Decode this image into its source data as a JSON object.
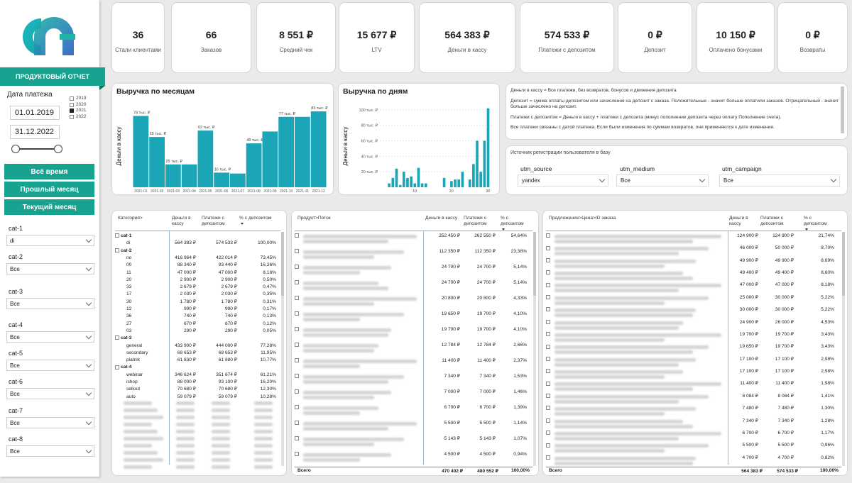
{
  "colors": {
    "accent": "#17a38f",
    "bar": "#1aa6b7",
    "accent_dark": "#0d6e60"
  },
  "sidebar": {
    "logo_icon": "company-logo",
    "title": "ПРОДУКТОВЫЙ ОТЧЕТ",
    "date_label": "Дата платежа",
    "date_from": "01.01.2019",
    "date_to": "31.12.2022",
    "years": [
      {
        "label": "2019",
        "checked": false
      },
      {
        "label": "2020",
        "checked": false
      },
      {
        "label": "2021",
        "checked": true
      },
      {
        "label": "2022",
        "checked": false
      }
    ],
    "buttons": [
      "Всё время",
      "Прошлый месяц",
      "Текущий месяц"
    ],
    "filters": [
      {
        "label": "cat-1",
        "value": "di"
      },
      {
        "label": "cat-2",
        "value": "Все"
      },
      {
        "label": "cat-3",
        "value": "Все"
      },
      {
        "label": "cat-4",
        "value": "Все"
      },
      {
        "label": "cat-5",
        "value": "Все"
      },
      {
        "label": "cat-6",
        "value": "Все"
      },
      {
        "label": "cat-7",
        "value": "Все"
      },
      {
        "label": "cat-8",
        "value": "Все"
      }
    ]
  },
  "kpis": [
    {
      "value": "36",
      "label": "Стали клиентами"
    },
    {
      "value": "66",
      "label": "Заказов"
    },
    {
      "value": "8 551 ₽",
      "label": "Средний чек"
    },
    {
      "value": "15 677 ₽",
      "label": "LTV"
    },
    {
      "value": "564 383 ₽",
      "label": "Деньги в кассу"
    },
    {
      "value": "574 533 ₽",
      "label": "Платежи с депозитом"
    },
    {
      "value": "0 ₽",
      "label": "Депозит"
    },
    {
      "value": "10 150 ₽",
      "label": "Оплачено бонусами"
    },
    {
      "value": "0 ₽",
      "label": "Возвраты"
    }
  ],
  "chart_data": [
    {
      "type": "bar",
      "title": "Выручка по месяцам",
      "ylabel": "Деньги в кассу",
      "xlabel": "",
      "categories": [
        "2021-01",
        "2021-02",
        "2021-03",
        "2021-04",
        "2021-05",
        "2021-06",
        "2021-07",
        "2021-08",
        "2021-09",
        "2021-10",
        "2021-11",
        "2021-12"
      ],
      "values": [
        78,
        55,
        25,
        25,
        62,
        16,
        15,
        48,
        61,
        77,
        77,
        83
      ],
      "data_labels": [
        "78 тыс. ₽",
        "55 тыс. ₽",
        "25 тыс. ₽",
        "",
        "62 тыс. ₽",
        "16 тыс. ₽",
        "",
        "48 тыс. ₽",
        "",
        "77 тыс. ₽",
        "",
        "83 тыс. ₽"
      ],
      "ylim": [
        0,
        90
      ],
      "grid": false
    },
    {
      "type": "bar",
      "title": "Выручка по дням",
      "ylabel": "Деньги в кассу",
      "xlabel": "",
      "x_ticks": [
        10,
        20,
        30
      ],
      "y_ticks": [
        "100 тыс. ₽",
        "80 тыс. ₽",
        "60 тыс. ₽",
        "40 тыс. ₽",
        "20 тыс. ₽"
      ],
      "y_tick_values": [
        100,
        80,
        60,
        40,
        20
      ],
      "ylim": [
        0,
        110
      ],
      "x": [
        3,
        4,
        5,
        6,
        7,
        8,
        9,
        10,
        11,
        12,
        13,
        18,
        20,
        21,
        22,
        23,
        25,
        26,
        27,
        28,
        29,
        30
      ],
      "values": [
        5,
        12,
        24,
        3,
        20,
        12,
        14,
        5,
        25,
        5,
        5,
        12,
        8,
        10,
        10,
        20,
        10,
        30,
        60,
        20,
        60,
        102
      ],
      "grid": true
    }
  ],
  "info": {
    "lines": [
      "Деньги в кассу = Все платежи, без возвратов, бонусов и движения депозита",
      "Депозит = сумма оплаты депозитом или зачисления на депозит с заказа. Положительные - значит больше оплатили заказов. Отрицательный - значит больше зачислено на депозит.",
      "Платежи с депозитом = Деньги в кассу + платежи с депозита (минус пополнение депозита через оплату Пополнение счета).",
      "Все платежи связаны с датой платежа. Если были изменения по суммам возвратов, они применяются к дате изменения."
    ]
  },
  "source": {
    "title": "Источник регистрации пользователя в базу",
    "fields": [
      {
        "label": "utm_source",
        "value": "yandex"
      },
      {
        "label": "utm_medium",
        "value": "Все"
      },
      {
        "label": "utm_campaign",
        "value": "Все"
      }
    ]
  },
  "table1": {
    "headers": [
      "Категория>",
      "Деньги в кассу",
      "Платежи с депозитом",
      "% с депозитом"
    ],
    "rows": [
      {
        "k": "g",
        "n": "cat-1",
        "a": "",
        "b": "",
        "c": ""
      },
      {
        "k": "i",
        "n": "di",
        "a": "564 383 ₽",
        "b": "574 533 ₽",
        "c": "100,00%"
      },
      {
        "k": "g",
        "n": "cat-2",
        "a": "",
        "b": "",
        "c": ""
      },
      {
        "k": "i",
        "n": "no",
        "a": "416 964 ₽",
        "b": "422 014 ₽",
        "c": "73,45%"
      },
      {
        "k": "i",
        "n": "00",
        "a": "88 340 ₽",
        "b": "93 440 ₽",
        "c": "16,26%"
      },
      {
        "k": "i",
        "n": "11",
        "a": "47 000 ₽",
        "b": "47 000 ₽",
        "c": "8,18%"
      },
      {
        "k": "i",
        "n": "20",
        "a": "2 900 ₽",
        "b": "2 900 ₽",
        "c": "0,50%"
      },
      {
        "k": "i",
        "n": "33",
        "a": "2 679 ₽",
        "b": "2 679 ₽",
        "c": "0,47%"
      },
      {
        "k": "i",
        "n": "17",
        "a": "2 030 ₽",
        "b": "2 030 ₽",
        "c": "0,35%"
      },
      {
        "k": "i",
        "n": "30",
        "a": "1 780 ₽",
        "b": "1 780 ₽",
        "c": "0,31%"
      },
      {
        "k": "i",
        "n": "12",
        "a": "990 ₽",
        "b": "990 ₽",
        "c": "0,17%"
      },
      {
        "k": "i",
        "n": "36",
        "a": "740 ₽",
        "b": "740 ₽",
        "c": "0,13%"
      },
      {
        "k": "i",
        "n": "27",
        "a": "670 ₽",
        "b": "670 ₽",
        "c": "0,12%"
      },
      {
        "k": "i",
        "n": "03",
        "a": "290 ₽",
        "b": "290 ₽",
        "c": "0,05%"
      },
      {
        "k": "g",
        "n": "cat-3",
        "a": "",
        "b": "",
        "c": ""
      },
      {
        "k": "i",
        "n": "general",
        "a": "433 900 ₽",
        "b": "444 000 ₽",
        "c": "77,28%"
      },
      {
        "k": "i",
        "n": "secondary",
        "a": "68 653 ₽",
        "b": "68 653 ₽",
        "c": "11,95%"
      },
      {
        "k": "i",
        "n": "platnik",
        "a": "61 830 ₽",
        "b": "61 880 ₽",
        "c": "10,77%"
      },
      {
        "k": "g",
        "n": "cat-4",
        "a": "",
        "b": "",
        "c": ""
      },
      {
        "k": "i",
        "n": "webinar",
        "a": "346 624 ₽",
        "b": "351 674 ₽",
        "c": "61,21%"
      },
      {
        "k": "i",
        "n": "ishop",
        "a": "88 000 ₽",
        "b": "93 100 ₽",
        "c": "16,20%"
      },
      {
        "k": "i",
        "n": "sellout",
        "a": "70 680 ₽",
        "b": "70 680 ₽",
        "c": "12,30%"
      },
      {
        "k": "i",
        "n": "auto",
        "a": "59 079 ₽",
        "b": "59 079 ₽",
        "c": "10,28%"
      }
    ]
  },
  "table2": {
    "headers": [
      "Продукт>Поток",
      "Деньги в кассу",
      "Платежи с депозитом",
      "% с депозитом"
    ],
    "rows": [
      {
        "a": "252 450 ₽",
        "b": "262 550 ₽",
        "c": "54,64%"
      },
      {
        "a": "112 350 ₽",
        "b": "112 350 ₽",
        "c": "23,38%"
      },
      {
        "a": "24 700 ₽",
        "b": "24 700 ₽",
        "c": "5,14%"
      },
      {
        "a": "24 700 ₽",
        "b": "24 700 ₽",
        "c": "5,14%"
      },
      {
        "a": "20 800 ₽",
        "b": "20 800 ₽",
        "c": "4,33%"
      },
      {
        "a": "19 650 ₽",
        "b": "19 700 ₽",
        "c": "4,10%"
      },
      {
        "a": "19 700 ₽",
        "b": "19 700 ₽",
        "c": "4,10%"
      },
      {
        "a": "12 784 ₽",
        "b": "12 784 ₽",
        "c": "2,66%"
      },
      {
        "a": "11 400 ₽",
        "b": "11 400 ₽",
        "c": "2,37%"
      },
      {
        "a": "7 340 ₽",
        "b": "7 340 ₽",
        "c": "1,53%"
      },
      {
        "a": "7 000 ₽",
        "b": "7 000 ₽",
        "c": "1,46%"
      },
      {
        "a": "6 700 ₽",
        "b": "6 700 ₽",
        "c": "1,39%"
      },
      {
        "a": "5 500 ₽",
        "b": "5 500 ₽",
        "c": "1,14%"
      },
      {
        "a": "5 143 ₽",
        "b": "5 143 ₽",
        "c": "1,07%"
      },
      {
        "a": "4 500 ₽",
        "b": "4 500 ₽",
        "c": "0,94%"
      }
    ],
    "total": {
      "label": "Всего",
      "a": "470 402 ₽",
      "b": "480 552 ₽",
      "c": "100,00%"
    }
  },
  "table3": {
    "headers": [
      "Предложение>Цена>ID заказа",
      "Деньги в кассу",
      "Платежи с депозитом",
      "% с депозитом"
    ],
    "rows": [
      {
        "a": "124 900 ₽",
        "b": "124 900 ₽",
        "c": "21,74%"
      },
      {
        "a": "46 000 ₽",
        "b": "50 000 ₽",
        "c": "8,70%"
      },
      {
        "a": "49 900 ₽",
        "b": "49 900 ₽",
        "c": "8,69%"
      },
      {
        "a": "49 400 ₽",
        "b": "49 400 ₽",
        "c": "8,60%"
      },
      {
        "a": "47 000 ₽",
        "b": "47 000 ₽",
        "c": "8,18%"
      },
      {
        "a": "25 000 ₽",
        "b": "30 000 ₽",
        "c": "5,22%"
      },
      {
        "a": "30 000 ₽",
        "b": "30 000 ₽",
        "c": "5,22%"
      },
      {
        "a": "24 900 ₽",
        "b": "26 000 ₽",
        "c": "4,53%"
      },
      {
        "a": "19 700 ₽",
        "b": "19 700 ₽",
        "c": "3,43%"
      },
      {
        "a": "19 650 ₽",
        "b": "19 700 ₽",
        "c": "3,43%"
      },
      {
        "a": "17 100 ₽",
        "b": "17 100 ₽",
        "c": "2,98%"
      },
      {
        "a": "17 100 ₽",
        "b": "17 100 ₽",
        "c": "2,98%"
      },
      {
        "a": "11 400 ₽",
        "b": "11 400 ₽",
        "c": "1,98%"
      },
      {
        "a": "8 084 ₽",
        "b": "8 084 ₽",
        "c": "1,41%"
      },
      {
        "a": "7 480 ₽",
        "b": "7 480 ₽",
        "c": "1,30%"
      },
      {
        "a": "7 340 ₽",
        "b": "7 340 ₽",
        "c": "1,28%"
      },
      {
        "a": "6 700 ₽",
        "b": "6 700 ₽",
        "c": "1,17%"
      },
      {
        "a": "5 500 ₽",
        "b": "5 500 ₽",
        "c": "0,96%"
      },
      {
        "a": "4 700 ₽",
        "b": "4 700 ₽",
        "c": "0,82%"
      }
    ],
    "total": {
      "label": "Всего",
      "a": "564 383 ₽",
      "b": "574 533 ₽",
      "c": "100,00%"
    }
  }
}
